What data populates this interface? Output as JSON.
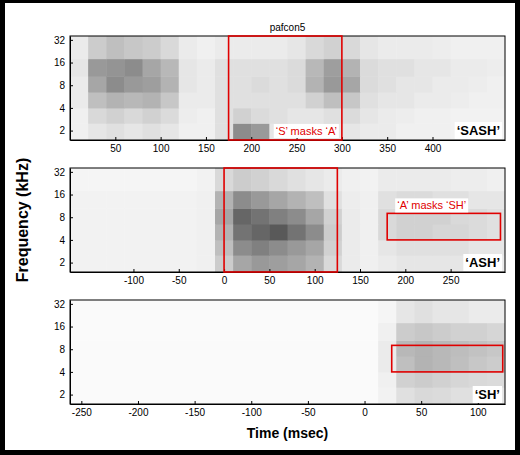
{
  "chart_data": [
    {
      "type": "heatmap",
      "title": "pafcon5",
      "log": "y",
      "xlim": [
        0,
        480
      ],
      "ylim": [
        1.5,
        36
      ],
      "xticks": [
        50,
        100,
        150,
        200,
        250,
        300,
        350,
        400
      ],
      "yticks": [
        2,
        4,
        8,
        16,
        32
      ],
      "zlim": [
        0,
        1
      ],
      "x_edges": [
        0,
        20,
        40,
        60,
        80,
        100,
        120,
        140,
        160,
        180,
        200,
        220,
        240,
        260,
        280,
        300,
        320,
        340,
        360,
        380,
        400,
        420,
        440,
        460,
        480
      ],
      "y_edges": [
        1.5,
        2.5,
        4,
        6.5,
        10.5,
        18,
        36
      ],
      "cells": [
        [
          0.06,
          0.1,
          0.12,
          0.1,
          0.12,
          0.1,
          0.06,
          0.06,
          0.12,
          0.45,
          0.4,
          0.1,
          0.08,
          0.08,
          0.1,
          0.1,
          0.08,
          0.08,
          0.06,
          0.06,
          0.06,
          0.05,
          0.05,
          0.05
        ],
        [
          0.06,
          0.15,
          0.18,
          0.15,
          0.18,
          0.14,
          0.07,
          0.06,
          0.12,
          0.18,
          0.14,
          0.12,
          0.1,
          0.1,
          0.12,
          0.14,
          0.1,
          0.08,
          0.07,
          0.06,
          0.06,
          0.05,
          0.05,
          0.05
        ],
        [
          0.08,
          0.25,
          0.3,
          0.28,
          0.3,
          0.22,
          0.08,
          0.08,
          0.12,
          0.12,
          0.12,
          0.12,
          0.12,
          0.18,
          0.25,
          0.22,
          0.12,
          0.1,
          0.1,
          0.08,
          0.08,
          0.07,
          0.06,
          0.06
        ],
        [
          0.08,
          0.35,
          0.45,
          0.4,
          0.38,
          0.3,
          0.1,
          0.08,
          0.12,
          0.12,
          0.14,
          0.12,
          0.14,
          0.3,
          0.4,
          0.35,
          0.14,
          0.12,
          0.1,
          0.1,
          0.08,
          0.08,
          0.07,
          0.06
        ],
        [
          0.1,
          0.4,
          0.42,
          0.45,
          0.35,
          0.28,
          0.1,
          0.08,
          0.12,
          0.12,
          0.12,
          0.12,
          0.14,
          0.28,
          0.38,
          0.3,
          0.14,
          0.12,
          0.12,
          0.1,
          0.1,
          0.08,
          0.08,
          0.07
        ],
        [
          0.08,
          0.2,
          0.25,
          0.22,
          0.2,
          0.15,
          0.08,
          0.06,
          0.08,
          0.08,
          0.08,
          0.08,
          0.1,
          0.15,
          0.18,
          0.15,
          0.1,
          0.08,
          0.08,
          0.08,
          0.07,
          0.06,
          0.06,
          0.06
        ]
      ],
      "boxes": [
        {
          "x": [
            175,
            300
          ],
          "y": [
            1.5,
            36
          ],
          "label": "‘S’ masks ‘A’",
          "color": "#e00000"
        }
      ],
      "annotations": [
        "‘SASH’"
      ]
    },
    {
      "type": "heatmap",
      "ylabel": "Frequency (kHz)",
      "log": "y",
      "xlim": [
        -170,
        310
      ],
      "ylim": [
        1.5,
        36
      ],
      "xticks": [
        -100,
        -50,
        0,
        50,
        100,
        150,
        200,
        250
      ],
      "yticks": [
        2,
        4,
        8,
        16,
        32
      ],
      "zlim": [
        0,
        1
      ],
      "x_edges": [
        -170,
        -150,
        -130,
        -110,
        -90,
        -70,
        -50,
        -30,
        -10,
        10,
        30,
        50,
        70,
        90,
        110,
        130,
        150,
        170,
        190,
        210,
        230,
        250,
        270,
        290,
        310
      ],
      "y_edges": [
        1.5,
        2.5,
        4,
        6.5,
        10.5,
        18,
        36
      ],
      "cells": [
        [
          0.05,
          0.05,
          0.05,
          0.05,
          0.05,
          0.05,
          0.05,
          0.06,
          0.2,
          0.35,
          0.4,
          0.38,
          0.35,
          0.3,
          0.15,
          0.08,
          0.06,
          0.08,
          0.1,
          0.1,
          0.1,
          0.1,
          0.08,
          0.08
        ],
        [
          0.05,
          0.05,
          0.05,
          0.05,
          0.05,
          0.05,
          0.05,
          0.06,
          0.25,
          0.45,
          0.5,
          0.45,
          0.4,
          0.35,
          0.18,
          0.08,
          0.06,
          0.1,
          0.12,
          0.12,
          0.12,
          0.12,
          0.1,
          0.1
        ],
        [
          0.05,
          0.05,
          0.05,
          0.05,
          0.05,
          0.05,
          0.05,
          0.06,
          0.3,
          0.55,
          0.6,
          0.65,
          0.55,
          0.45,
          0.2,
          0.08,
          0.06,
          0.15,
          0.18,
          0.18,
          0.16,
          0.16,
          0.14,
          0.12
        ],
        [
          0.05,
          0.05,
          0.05,
          0.05,
          0.05,
          0.05,
          0.05,
          0.06,
          0.35,
          0.6,
          0.55,
          0.5,
          0.45,
          0.35,
          0.18,
          0.08,
          0.06,
          0.15,
          0.18,
          0.18,
          0.18,
          0.15,
          0.14,
          0.12
        ],
        [
          0.05,
          0.05,
          0.05,
          0.05,
          0.05,
          0.05,
          0.05,
          0.06,
          0.3,
          0.45,
          0.4,
          0.35,
          0.3,
          0.25,
          0.12,
          0.07,
          0.06,
          0.12,
          0.14,
          0.14,
          0.12,
          0.12,
          0.1,
          0.1
        ],
        [
          0.04,
          0.04,
          0.04,
          0.04,
          0.04,
          0.04,
          0.04,
          0.05,
          0.15,
          0.2,
          0.18,
          0.15,
          0.12,
          0.1,
          0.08,
          0.06,
          0.05,
          0.08,
          0.08,
          0.08,
          0.08,
          0.07,
          0.07,
          0.06
        ]
      ],
      "boxes": [
        {
          "x": [
            0,
            125
          ],
          "y": [
            1.5,
            36
          ],
          "color": "#e00000"
        },
        {
          "x": [
            180,
            305
          ],
          "y": [
            4,
            9
          ],
          "label": "‘A’ masks ‘SH’",
          "color": "#e00000"
        }
      ],
      "annotations": [
        "‘ASH’"
      ]
    },
    {
      "type": "heatmap",
      "xlabel": "Time (msec)",
      "log": "y",
      "xlim": [
        -260,
        124
      ],
      "ylim": [
        1.5,
        36
      ],
      "xticks": [
        -250,
        -200,
        -150,
        -100,
        -50,
        0,
        50,
        100
      ],
      "yticks": [
        2,
        4,
        8,
        16,
        32
      ],
      "zlim": [
        0,
        1
      ],
      "x_edges": [
        -260,
        -244,
        -228,
        -212,
        -196,
        -180,
        -164,
        -148,
        -132,
        -116,
        -100,
        -84,
        -68,
        -52,
        -36,
        -20,
        -4,
        12,
        28,
        44,
        60,
        76,
        92,
        108,
        124
      ],
      "y_edges": [
        1.5,
        2.5,
        4,
        6.5,
        10.5,
        18,
        36
      ],
      "cells": [
        [
          0.02,
          0.02,
          0.02,
          0.02,
          0.02,
          0.02,
          0.02,
          0.02,
          0.02,
          0.02,
          0.02,
          0.02,
          0.02,
          0.02,
          0.02,
          0.02,
          0.02,
          0.05,
          0.12,
          0.15,
          0.14,
          0.12,
          0.12,
          0.1
        ],
        [
          0.02,
          0.02,
          0.02,
          0.02,
          0.02,
          0.02,
          0.02,
          0.02,
          0.02,
          0.02,
          0.02,
          0.02,
          0.02,
          0.02,
          0.02,
          0.02,
          0.02,
          0.06,
          0.18,
          0.2,
          0.18,
          0.16,
          0.15,
          0.14
        ],
        [
          0.02,
          0.02,
          0.02,
          0.02,
          0.02,
          0.02,
          0.02,
          0.02,
          0.02,
          0.02,
          0.02,
          0.02,
          0.02,
          0.02,
          0.02,
          0.02,
          0.02,
          0.08,
          0.25,
          0.3,
          0.28,
          0.25,
          0.22,
          0.2
        ],
        [
          0.02,
          0.02,
          0.02,
          0.02,
          0.02,
          0.02,
          0.02,
          0.02,
          0.02,
          0.02,
          0.02,
          0.02,
          0.02,
          0.02,
          0.02,
          0.02,
          0.02,
          0.08,
          0.28,
          0.3,
          0.28,
          0.26,
          0.24,
          0.22
        ],
        [
          0.02,
          0.02,
          0.02,
          0.02,
          0.02,
          0.02,
          0.02,
          0.02,
          0.02,
          0.02,
          0.02,
          0.02,
          0.02,
          0.02,
          0.02,
          0.02,
          0.02,
          0.06,
          0.2,
          0.22,
          0.2,
          0.18,
          0.18,
          0.16
        ],
        [
          0.02,
          0.02,
          0.02,
          0.02,
          0.02,
          0.02,
          0.02,
          0.02,
          0.02,
          0.02,
          0.02,
          0.02,
          0.02,
          0.02,
          0.02,
          0.02,
          0.02,
          0.04,
          0.1,
          0.12,
          0.1,
          0.1,
          0.08,
          0.08
        ]
      ],
      "boxes": [
        {
          "x": [
            24,
            122
          ],
          "y": [
            4,
            9
          ],
          "color": "#e00000"
        }
      ],
      "annotations": [
        "‘SH’"
      ]
    }
  ]
}
